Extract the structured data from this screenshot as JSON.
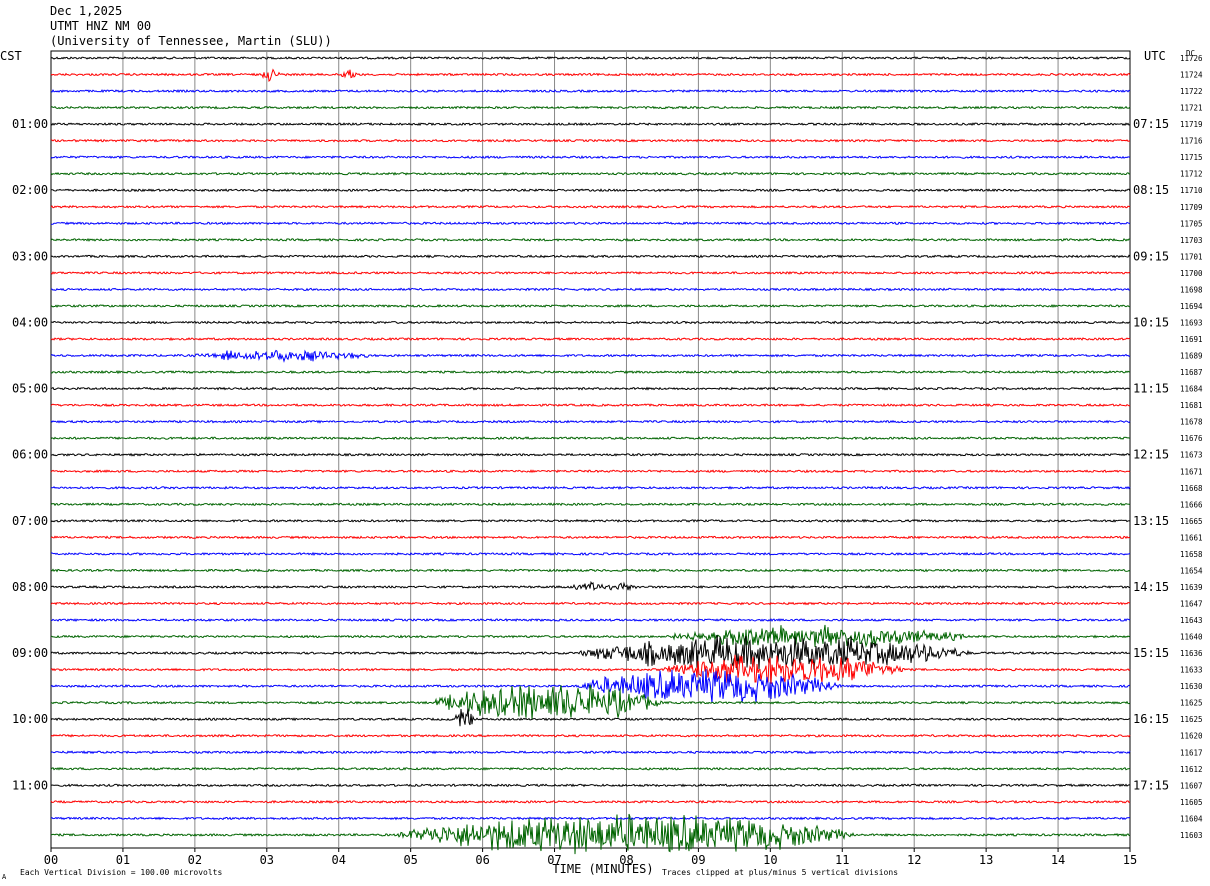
{
  "header": {
    "date": "Dec 1,2025",
    "station": "UTMT HNZ NM 00",
    "network": "(University of Tennessee, Martin (SLU))",
    "left_tz": "CST",
    "right_tz": "UTC",
    "dc_label": "DC"
  },
  "footer": {
    "scale_note": "Each Vertical Division = 100.00 microvolts",
    "xlabel": "TIME (MINUTES)",
    "clip_note": "Traces clipped at plus/minus 5 vertical divisions",
    "corner_mark": "A"
  },
  "chart_data": {
    "type": "line",
    "xlabel": "TIME (MINUTES)",
    "xlim": [
      0,
      15
    ],
    "x_ticks": [
      "00",
      "01",
      "02",
      "03",
      "04",
      "05",
      "06",
      "07",
      "08",
      "09",
      "10",
      "11",
      "12",
      "13",
      "14",
      "15"
    ],
    "trace_colors": [
      "#000000",
      "#ff0000",
      "#0000ff",
      "#006400"
    ],
    "left_hour_labels": [
      "01:00",
      "02:00",
      "03:00",
      "04:00",
      "05:00",
      "06:00",
      "07:00",
      "08:00",
      "09:00",
      "10:00",
      "11:00"
    ],
    "right_hour_labels": [
      "07:15",
      "08:15",
      "09:15",
      "10:15",
      "11:15",
      "12:15",
      "13:15",
      "14:15",
      "15:15",
      "16:15",
      "17:15"
    ],
    "dc_offsets": [
      "11726",
      "11724",
      "11722",
      "11721",
      "11719",
      "11716",
      "11715",
      "11712",
      "11710",
      "11709",
      "11705",
      "11703",
      "11701",
      "11700",
      "11698",
      "11694",
      "11693",
      "11691",
      "11689",
      "11687",
      "11684",
      "11681",
      "11678",
      "11676",
      "11673",
      "11671",
      "11668",
      "11666",
      "11665",
      "11661",
      "11658",
      "11654",
      "11639",
      "11647",
      "11643",
      "11640",
      "11636",
      "11633",
      "11630",
      "11625",
      "11625",
      "11620",
      "11617",
      "11612",
      "11607",
      "11605",
      "11604",
      "11603"
    ],
    "trace_count": 48,
    "events": [
      {
        "trace": 1,
        "start_min": 2.9,
        "end_min": 3.2,
        "amp": 7
      },
      {
        "trace": 1,
        "start_min": 4.0,
        "end_min": 4.3,
        "amp": 6
      },
      {
        "trace": 18,
        "start_min": 1.9,
        "end_min": 4.5,
        "amp": 7
      },
      {
        "trace": 32,
        "start_min": 7.2,
        "end_min": 8.2,
        "amp": 6
      },
      {
        "trace": 35,
        "start_min": 8.5,
        "end_min": 12.8,
        "amp": 12
      },
      {
        "trace": 36,
        "start_min": 7.3,
        "end_min": 12.8,
        "amp": 20
      },
      {
        "trace": 37,
        "start_min": 8.5,
        "end_min": 11.9,
        "amp": 18
      },
      {
        "trace": 38,
        "start_min": 7.3,
        "end_min": 11.0,
        "amp": 20
      },
      {
        "trace": 39,
        "start_min": 5.3,
        "end_min": 8.5,
        "amp": 22
      },
      {
        "trace": 40,
        "start_min": 5.6,
        "end_min": 5.9,
        "amp": 12
      },
      {
        "trace": 47,
        "start_min": 4.8,
        "end_min": 11.2,
        "amp": 24
      }
    ]
  }
}
